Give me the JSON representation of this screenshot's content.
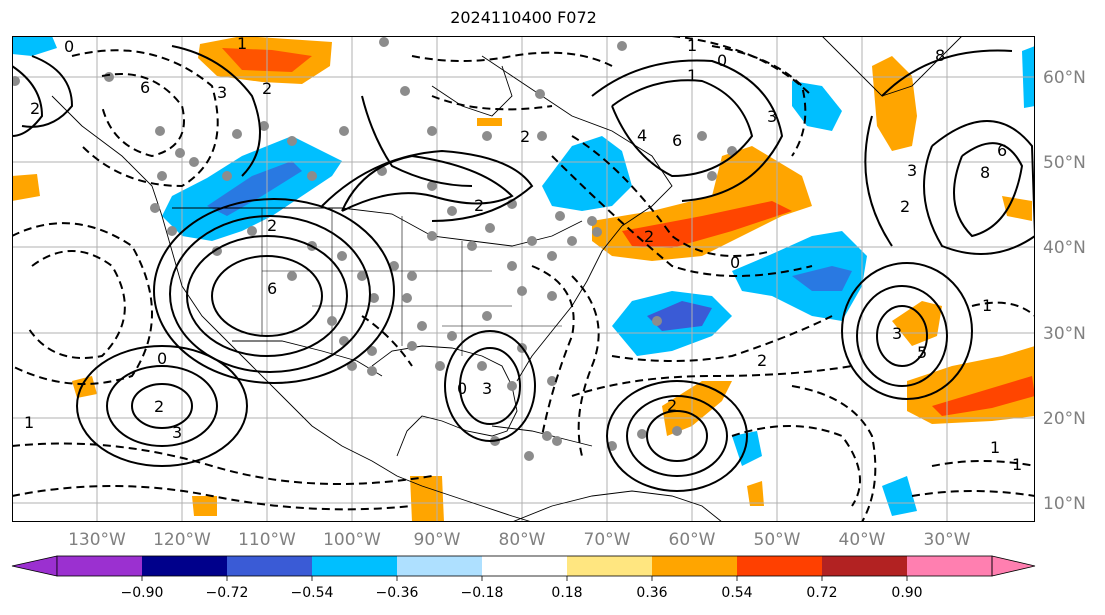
{
  "title": "2024110400 F072",
  "map": {
    "lon_labels": [
      "130°W",
      "120°W",
      "110°W",
      "100°W",
      "90°W",
      "80°W",
      "70°W",
      "60°W",
      "50°W",
      "40°W",
      "30°W"
    ],
    "lat_labels": [
      "60°N",
      "50°N",
      "40°N",
      "30°N",
      "20°N",
      "10°N"
    ],
    "grid": true,
    "contour_labels": [
      "0",
      "2",
      "6",
      "1",
      "6",
      "0",
      "2",
      "3",
      "1",
      "2",
      "2",
      "3",
      "2",
      "3",
      "0",
      "2",
      "1",
      "0",
      "1",
      "3",
      "4",
      "6",
      "2",
      "0",
      "2",
      "1",
      "6",
      "8",
      "3",
      "2",
      "1",
      "1",
      "3",
      "5",
      "8",
      "2"
    ],
    "colors": {
      "neg_strong": "#1e3cc8",
      "neg_mid": "#3a5bd6",
      "neg_light": "#00bfff",
      "pos_light": "#ffa500",
      "pos_strong": "#ff4500",
      "grid": "#b0b0b0",
      "coast": "#000000",
      "dots": "#8c8c8c"
    }
  },
  "colorbar": {
    "ticks": [
      "−0.90",
      "−0.72",
      "−0.54",
      "−0.36",
      "−0.18",
      "0.18",
      "0.36",
      "0.54",
      "0.72",
      "0.90"
    ],
    "colors": [
      "#9b30d0",
      "#00008b",
      "#3a5bd6",
      "#00bfff",
      "#aee0ff",
      "#ffffff",
      "#ffe680",
      "#ffa500",
      "#ff4000",
      "#b22222",
      "#ff7fb0"
    ]
  }
}
